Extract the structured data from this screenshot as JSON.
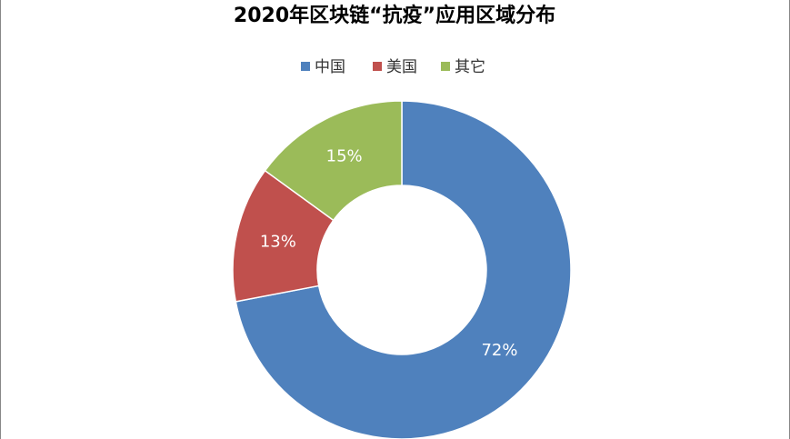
{
  "chart_data": {
    "type": "donut",
    "title": "2020年区块链“抗疫”应用区域分布",
    "categories": [
      "中国",
      "美国",
      "其它"
    ],
    "values": [
      72,
      13,
      15
    ],
    "value_labels": [
      "72%",
      "13%",
      "15%"
    ],
    "colors": [
      "#4f81bd",
      "#c0504d",
      "#9bbb59"
    ],
    "legend": "top"
  }
}
